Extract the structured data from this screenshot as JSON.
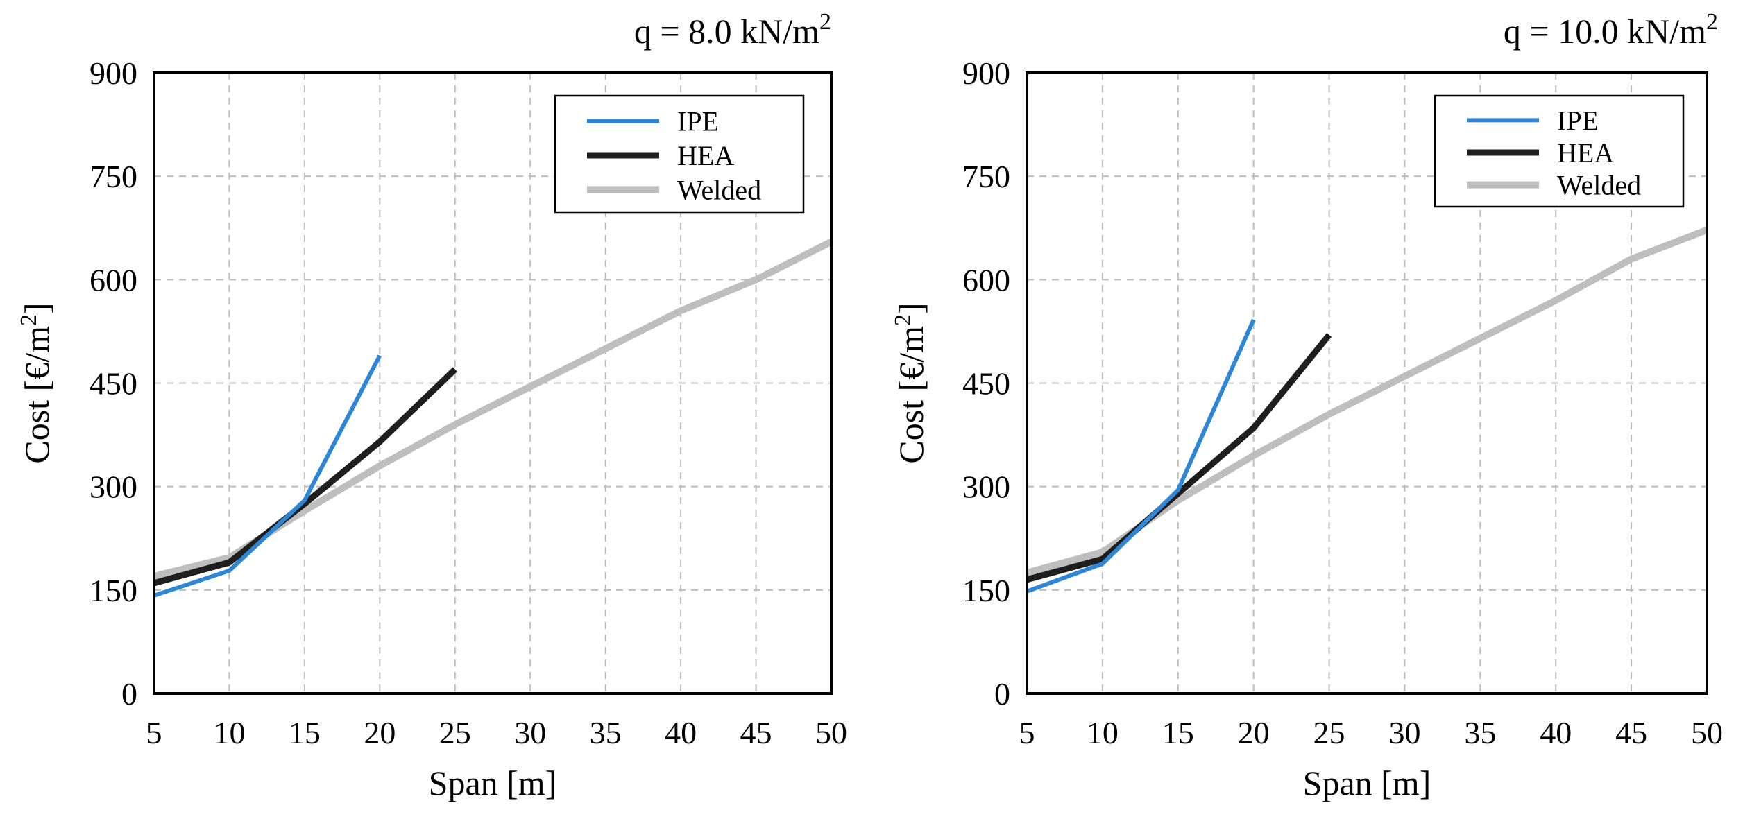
{
  "colors": {
    "IPE": "#2E86D6",
    "HEA": "#1E1E1E",
    "Welded": "#BEBEBE",
    "grid": "#BDBDBD",
    "axis": "#000000"
  },
  "chart_data": [
    {
      "type": "line",
      "title": "q = 8.0 kN/m²",
      "xlabel": "Span [m]",
      "ylabel": "Cost [€/m²]",
      "xlim": [
        5,
        50
      ],
      "ylim": [
        0,
        900
      ],
      "xticks": [
        5,
        10,
        15,
        20,
        25,
        30,
        35,
        40,
        45,
        50
      ],
      "yticks": [
        0,
        150,
        300,
        450,
        600,
        750,
        900
      ],
      "grid": true,
      "legend_position": "top-right",
      "series": [
        {
          "name": "IPE",
          "x": [
            5,
            10,
            15,
            20
          ],
          "y": [
            142,
            178,
            280,
            490
          ]
        },
        {
          "name": "HEA",
          "x": [
            5,
            10,
            15,
            20,
            25
          ],
          "y": [
            160,
            190,
            275,
            365,
            470
          ]
        },
        {
          "name": "Welded",
          "x": [
            5,
            10,
            15,
            20,
            25,
            30,
            35,
            40,
            45,
            50
          ],
          "y": [
            170,
            197,
            265,
            330,
            390,
            445,
            500,
            555,
            600,
            655
          ]
        }
      ]
    },
    {
      "type": "line",
      "title": "q = 10.0 kN/m²",
      "xlabel": "Span [m]",
      "ylabel": "Cost [€/m²]",
      "xlim": [
        5,
        50
      ],
      "ylim": [
        0,
        900
      ],
      "xticks": [
        5,
        10,
        15,
        20,
        25,
        30,
        35,
        40,
        45,
        50
      ],
      "yticks": [
        0,
        150,
        300,
        450,
        600,
        750,
        900
      ],
      "grid": true,
      "legend_position": "top-right",
      "series": [
        {
          "name": "IPE",
          "x": [
            5,
            10,
            15,
            20
          ],
          "y": [
            148,
            188,
            295,
            542
          ]
        },
        {
          "name": "HEA",
          "x": [
            5,
            10,
            15,
            20,
            25
          ],
          "y": [
            165,
            195,
            290,
            385,
            520
          ]
        },
        {
          "name": "Welded",
          "x": [
            5,
            10,
            15,
            20,
            25,
            30,
            35,
            40,
            45,
            50
          ],
          "y": [
            175,
            205,
            280,
            345,
            405,
            460,
            515,
            570,
            630,
            672
          ]
        }
      ]
    }
  ]
}
